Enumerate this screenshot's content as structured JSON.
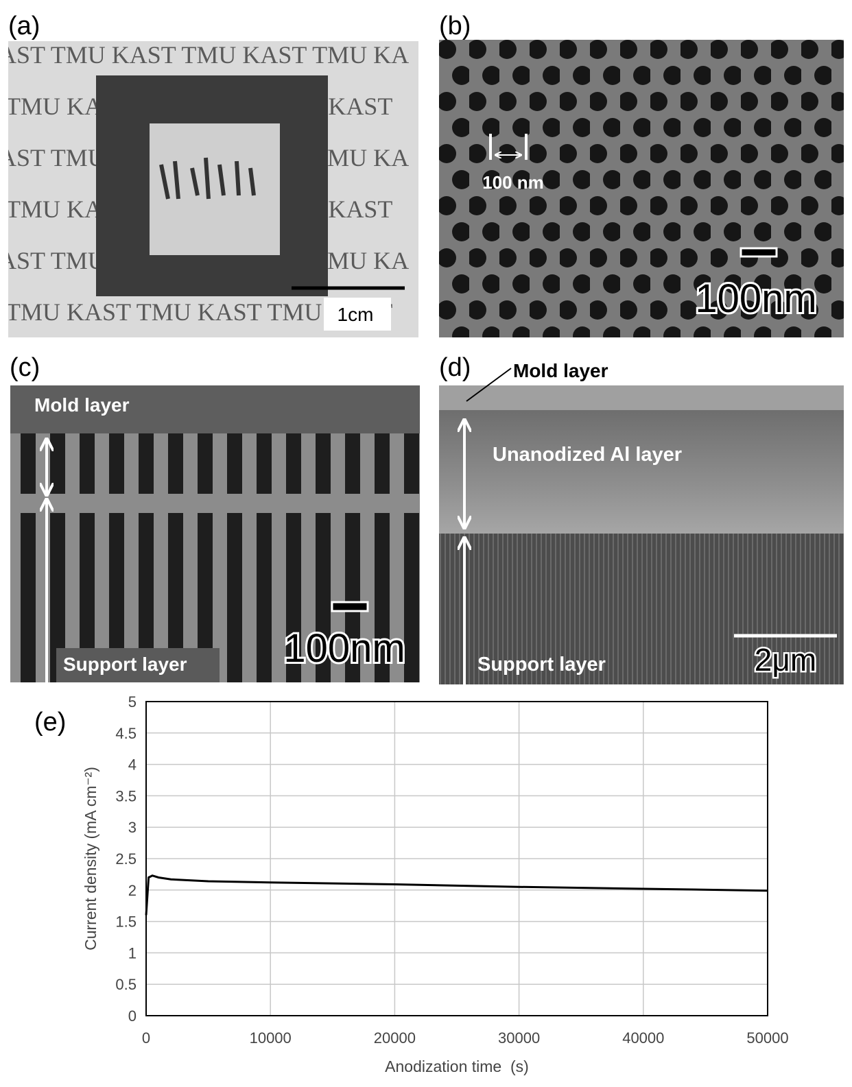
{
  "panel_a": {
    "label": "(a)",
    "background_text": [
      "AST TMU KAST TMU KAST TMU KA",
      "TMU KAST TMU KAST TMU KAST",
      "AST TMU KAST TMU KAST TMU KA",
      "TMU KAST TMU KAST TMU KAST",
      "AST TMU KAST TMU KAST TMU KA",
      "TMU KAST TMU KAST TMU KAST"
    ],
    "scale_bar": "1cm"
  },
  "panel_b": {
    "label": "(b)",
    "pore_spacing": "100 nm",
    "scale_bar": "100nm"
  },
  "panel_c": {
    "label": "(c)",
    "top_layer": "Mold layer",
    "bottom_layer": "Support layer",
    "scale_bar": "100nm"
  },
  "panel_d": {
    "label": "(d)",
    "top_layer": "Mold layer",
    "middle_layer": "Unanodized Al layer",
    "bottom_layer": "Support layer",
    "scale_bar": "2μm"
  },
  "chart_data": {
    "type": "line",
    "panel_label": "(e)",
    "x_label": "Anodization time  (s)",
    "y_label": "Current density (mA cm⁻²)",
    "xlim": [
      0,
      50000
    ],
    "xticks": [
      0,
      10000,
      20000,
      30000,
      40000,
      50000
    ],
    "ylim": [
      0,
      5
    ],
    "yticks": [
      0,
      0.5,
      1,
      1.5,
      2,
      2.5,
      3,
      3.5,
      4,
      4.5,
      5
    ],
    "grid": true,
    "series": [
      {
        "color": "#000000",
        "x": [
          0,
          200,
          500,
          1000,
          2000,
          5000,
          10000,
          20000,
          30000,
          40000,
          50000
        ],
        "values": [
          1.6,
          2.2,
          2.23,
          2.2,
          2.17,
          2.14,
          2.12,
          2.09,
          2.05,
          2.02,
          1.99
        ]
      }
    ]
  }
}
